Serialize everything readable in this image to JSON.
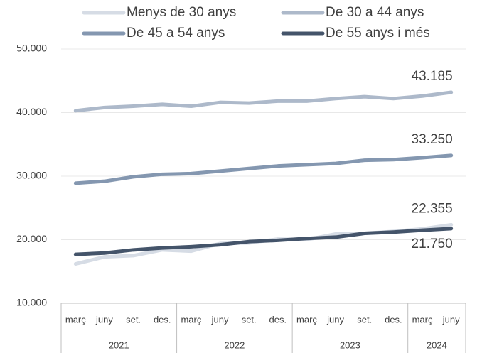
{
  "chart_data": {
    "type": "line",
    "categories": [
      [
        "març",
        "2021"
      ],
      [
        "juny",
        "2021"
      ],
      [
        "set.",
        "2021"
      ],
      [
        "des.",
        "2021"
      ],
      [
        "març",
        "2022"
      ],
      [
        "juny",
        "2022"
      ],
      [
        "set.",
        "2022"
      ],
      [
        "des.",
        "2022"
      ],
      [
        "març",
        "2023"
      ],
      [
        "juny",
        "2023"
      ],
      [
        "set.",
        "2023"
      ],
      [
        "des.",
        "2023"
      ],
      [
        "març",
        "2024"
      ],
      [
        "juny",
        "2024"
      ]
    ],
    "series": [
      {
        "name": "Menys de 30 anys",
        "color": "#d6dce5",
        "values": [
          16200,
          17300,
          17500,
          18400,
          18200,
          19400,
          19500,
          20100,
          20000,
          20900,
          21000,
          21300,
          21700,
          22355
        ],
        "value_labels": [
          null,
          null,
          null,
          null,
          null,
          null,
          null,
          null,
          null,
          null,
          null,
          null,
          null,
          "22.355"
        ]
      },
      {
        "name": "De 30 a 44 anys",
        "color": "#adb9ca",
        "values": [
          40300,
          40800,
          41000,
          41300,
          41000,
          41600,
          41500,
          41800,
          41800,
          42200,
          42500,
          42200,
          42600,
          43185
        ],
        "value_labels": [
          null,
          null,
          null,
          null,
          null,
          null,
          null,
          null,
          null,
          null,
          null,
          null,
          null,
          "43.185"
        ]
      },
      {
        "name": "De 45 a 54 anys",
        "color": "#8497b0",
        "values": [
          28900,
          29200,
          29900,
          30300,
          30400,
          30800,
          31200,
          31600,
          31800,
          32000,
          32500,
          32600,
          32900,
          33250
        ],
        "value_labels": [
          null,
          null,
          null,
          null,
          null,
          null,
          null,
          null,
          null,
          null,
          null,
          null,
          null,
          "33.250"
        ]
      },
      {
        "name": "De 55 anys i més",
        "color": "#44546a",
        "values": [
          17700,
          17900,
          18400,
          18700,
          18900,
          19200,
          19700,
          19900,
          20200,
          20400,
          21000,
          21200,
          21500,
          21750
        ],
        "value_labels": [
          null,
          null,
          null,
          null,
          null,
          null,
          null,
          null,
          null,
          null,
          null,
          null,
          null,
          "21.750"
        ]
      }
    ],
    "ylim": [
      10000,
      50000
    ],
    "yticks": [
      {
        "value": 10000,
        "label": "10.000"
      },
      {
        "value": 20000,
        "label": "20.000"
      },
      {
        "value": 30000,
        "label": "30.000"
      },
      {
        "value": 40000,
        "label": "40.000"
      },
      {
        "value": 50000,
        "label": "50.000"
      }
    ],
    "grid": true,
    "legend": "top"
  }
}
